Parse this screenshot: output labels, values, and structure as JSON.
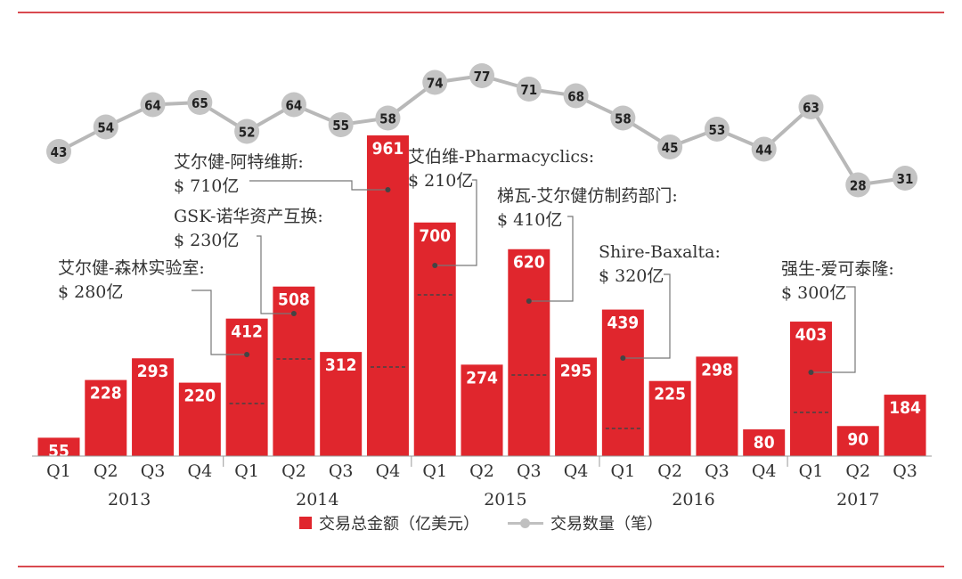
{
  "chart_data": {
    "type": "bar",
    "categories": [
      "Q1",
      "Q2",
      "Q3",
      "Q4",
      "Q1",
      "Q2",
      "Q3",
      "Q4",
      "Q1",
      "Q2",
      "Q3",
      "Q4",
      "Q1",
      "Q2",
      "Q3",
      "Q4",
      "Q1",
      "Q2",
      "Q3"
    ],
    "years": [
      "2013",
      "2014",
      "2015",
      "2016",
      "2017"
    ],
    "series": [
      {
        "name": "交易总金额（亿美元）",
        "type": "bar",
        "color": "#e0262d",
        "values": [
          55,
          228,
          293,
          220,
          412,
          508,
          312,
          961,
          700,
          274,
          620,
          295,
          439,
          225,
          298,
          80,
          403,
          90,
          184
        ]
      },
      {
        "name": "交易数量（笔）",
        "type": "line",
        "color": "#b8b8b8",
        "values": [
          43,
          54,
          64,
          65,
          52,
          64,
          55,
          58,
          74,
          77,
          71,
          68,
          58,
          45,
          53,
          44,
          63,
          28,
          31
        ]
      }
    ],
    "annotations": [
      {
        "title": "艾尔健-森林实验室:",
        "value": "$ 280亿",
        "bar_index": 4
      },
      {
        "title": "GSK-诺华资产互换:",
        "value": "$ 230亿",
        "bar_index": 5
      },
      {
        "title": "艾尔健-阿特维斯:",
        "value": "$ 710亿",
        "bar_index": 7
      },
      {
        "title": "艾伯维-Pharmacyclics:",
        "value": "$ 210亿",
        "bar_index": 8
      },
      {
        "title": "梯瓦-艾尔健仿制药部门:",
        "value": "$ 410亿",
        "bar_index": 10
      },
      {
        "title": "Shire-Baxalta:",
        "value": "$ 320亿",
        "bar_index": 12
      },
      {
        "title": "强生-爱可泰隆:",
        "value": "$ 300亿",
        "bar_index": 16
      }
    ],
    "legend": {
      "bar_label": "交易总金额（亿美元）",
      "line_label": "交易数量（笔）",
      "placement": "bottom"
    }
  }
}
